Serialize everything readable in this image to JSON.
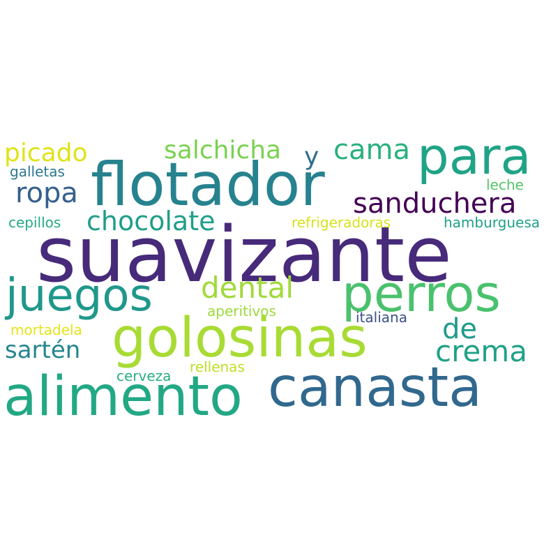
{
  "word_cloud": {
    "words": [
      {
        "key": "suavizante",
        "text": "suavizante",
        "color": "#472a7a"
      },
      {
        "key": "flotador",
        "text": "flotador",
        "color": "#26828e"
      },
      {
        "key": "golosinas",
        "text": "golosinas",
        "color": "#a8db34"
      },
      {
        "key": "canasta",
        "text": "canasta",
        "color": "#31688e"
      },
      {
        "key": "alimento",
        "text": "alimento",
        "color": "#22a884"
      },
      {
        "key": "perros",
        "text": "perros",
        "color": "#4ac16d"
      },
      {
        "key": "para",
        "text": "para",
        "color": "#20a386"
      },
      {
        "key": "juegos",
        "text": "juegos",
        "color": "#1f988b"
      },
      {
        "key": "sanduchera",
        "text": "sanduchera",
        "color": "#440154"
      },
      {
        "key": "chocolate",
        "text": "chocolate",
        "color": "#1f9e89"
      },
      {
        "key": "ropa",
        "text": "ropa",
        "color": "#355f8d"
      },
      {
        "key": "dental",
        "text": "dental",
        "color": "#a0da39"
      },
      {
        "key": "cama",
        "text": "cama",
        "color": "#2ab07f"
      },
      {
        "key": "crema",
        "text": "crema",
        "color": "#1fa187"
      },
      {
        "key": "de",
        "text": "de",
        "color": "#1e9b8a"
      },
      {
        "key": "salchicha",
        "text": "salchicha",
        "color": "#7ad151"
      },
      {
        "key": "picado",
        "text": "picado",
        "color": "#dfe318"
      },
      {
        "key": "sarten",
        "text": "sartén",
        "color": "#25858e"
      },
      {
        "key": "y",
        "text": "y",
        "color": "#2e6f8e"
      },
      {
        "key": "galletas",
        "text": "galletas",
        "color": "#2a788e"
      },
      {
        "key": "leche",
        "text": "leche",
        "color": "#54c568"
      },
      {
        "key": "cepillos",
        "text": "cepillos",
        "color": "#25ab82"
      },
      {
        "key": "refrigeradoras",
        "text": "refrigeradoras",
        "color": "#d8e219"
      },
      {
        "key": "hamburguesa",
        "text": "hamburguesa",
        "color": "#1fa088"
      },
      {
        "key": "aperitivos",
        "text": "aperitivos",
        "color": "#9dd93b"
      },
      {
        "key": "italiana",
        "text": "italiana",
        "color": "#3b528b"
      },
      {
        "key": "mortadela",
        "text": "mortadela",
        "color": "#e5e419"
      },
      {
        "key": "rellenas",
        "text": "rellenas",
        "color": "#bddf26"
      },
      {
        "key": "cerveza",
        "text": "cerveza",
        "color": "#29af7f"
      }
    ]
  }
}
